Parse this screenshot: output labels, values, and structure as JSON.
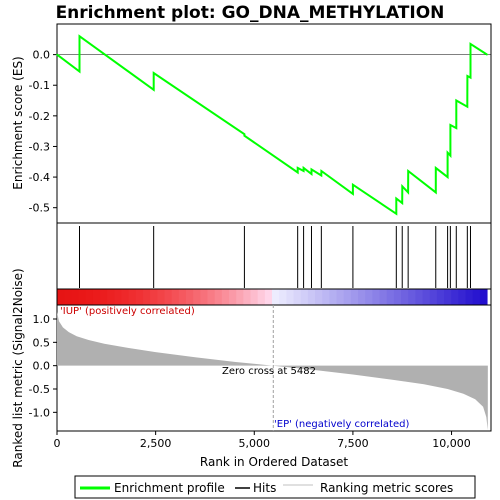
{
  "chart_data": {
    "type": "line",
    "title": "Enrichment plot: GO_DNA_METHYLATION",
    "xlabel": "Rank in Ordered Dataset",
    "ylabel_top": "Enrichment score (ES)",
    "ylabel_bottom": "Ranked list metric (Signal2Noise)",
    "xlim": [
      0,
      11000
    ],
    "es_ylim": [
      -0.55,
      0.1
    ],
    "metric_ylim": [
      -1.4,
      1.3
    ],
    "x_ticks": [
      0,
      2500,
      5000,
      7500,
      10000
    ],
    "x_tick_labels": [
      "0",
      "2,500",
      "5,000",
      "7,500",
      "10,000"
    ],
    "es_ticks": [
      0.0,
      -0.1,
      -0.2,
      -0.3,
      -0.4,
      -0.5
    ],
    "es_tick_labels": [
      "0.0",
      "-0.1",
      "-0.2",
      "-0.3",
      "-0.4",
      "-0.5"
    ],
    "metric_ticks": [
      1.0,
      0.5,
      0.0,
      -0.5,
      -1.0
    ],
    "metric_tick_labels": [
      "1.0",
      "0.5",
      "0.0",
      "-0.5",
      "-1.0"
    ],
    "series": [
      {
        "name": "Enrichment profile",
        "color": "#00ff00",
        "x": [
          0,
          570,
          571,
          2450,
          2451,
          4750,
          4751,
          6100,
          6101,
          6250,
          6251,
          6450,
          6451,
          6700,
          6701,
          7500,
          7501,
          8600,
          8601,
          8750,
          8751,
          8900,
          8901,
          9600,
          9601,
          9900,
          9901,
          9970,
          9971,
          10120,
          10121,
          10400,
          10401,
          10480,
          10481,
          10900
        ],
        "y": [
          0.0,
          -0.055,
          0.06,
          -0.115,
          -0.06,
          -0.26,
          -0.265,
          -0.385,
          -0.37,
          -0.38,
          -0.37,
          -0.39,
          -0.375,
          -0.395,
          -0.38,
          -0.455,
          -0.425,
          -0.52,
          -0.47,
          -0.485,
          -0.43,
          -0.45,
          -0.38,
          -0.45,
          -0.37,
          -0.4,
          -0.32,
          -0.33,
          -0.23,
          -0.24,
          -0.15,
          -0.17,
          -0.07,
          -0.075,
          0.035,
          0.0
        ]
      }
    ],
    "hits": [
      570,
      2450,
      4750,
      6100,
      6250,
      6450,
      6700,
      7500,
      8600,
      8750,
      8900,
      9600,
      9900,
      9970,
      10120,
      10400,
      10480
    ],
    "metric_curve": {
      "name": "Ranking metric scores",
      "color": "#b0b0b0",
      "x": [
        0,
        50,
        150,
        300,
        500,
        800,
        1200,
        1800,
        2500,
        3500,
        4500,
        5482,
        6500,
        7500,
        8500,
        9300,
        9900,
        10300,
        10600,
        10800,
        10880,
        10920
      ],
      "y": [
        1.15,
        0.95,
        0.82,
        0.72,
        0.63,
        0.55,
        0.47,
        0.38,
        0.29,
        0.18,
        0.08,
        0.0,
        -0.09,
        -0.19,
        -0.3,
        -0.4,
        -0.5,
        -0.6,
        -0.72,
        -0.88,
        -1.1,
        -1.38
      ]
    },
    "zero_cross": 5482,
    "annotations": {
      "positive": "'IUP' (positively correlated)",
      "negative": "'EP' (negatively correlated)",
      "zero_cross": "Zero cross at 5482"
    },
    "legend": {
      "placement": "bottom",
      "items": [
        "Enrichment profile",
        "Hits",
        "Ranking metric scores"
      ]
    },
    "colors": {
      "profile": "#00ff00",
      "hits": "#000000",
      "metric": "#b0b0b0",
      "positive_text": "#cc0000",
      "negative_text": "#0000cc"
    }
  }
}
